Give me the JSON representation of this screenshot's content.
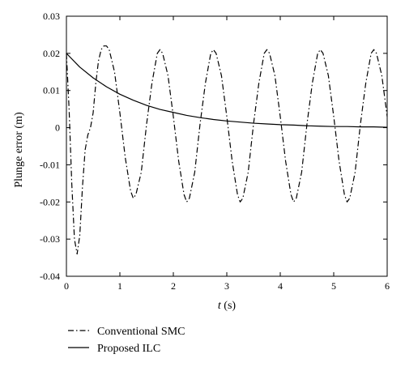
{
  "chart_data": {
    "type": "line",
    "title": "",
    "xlabel": "t (s)",
    "xlabel_italic": "t",
    "xlabel_unit": " (s)",
    "ylabel": "Plunge error (m)",
    "xlim": [
      0,
      6
    ],
    "ylim": [
      -0.04,
      0.03
    ],
    "xticks": [
      0,
      1,
      2,
      3,
      4,
      5,
      6
    ],
    "xtick_labels": [
      "0",
      "1",
      "2",
      "3",
      "4",
      "5",
      "6"
    ],
    "yticks": [
      0.03,
      0.02,
      0.01,
      0,
      -0.01,
      -0.02,
      -0.03,
      -0.04
    ],
    "ytick_labels": [
      "0.03",
      "0.02",
      "0.01",
      "0",
      "-0.01",
      "-0.02",
      "-0.03",
      "-0.04"
    ],
    "grid": false,
    "legend_position": "bottom-left, below plot",
    "series": [
      {
        "name": "Conventional SMC",
        "line_style": "dash-dot",
        "color": "#000000",
        "x": [
          0,
          0.05,
          0.1,
          0.15,
          0.2,
          0.25,
          0.3,
          0.35,
          0.4,
          0.45,
          0.5,
          0.55,
          0.6,
          0.65,
          0.7,
          0.75,
          0.8,
          0.9,
          1.0,
          1.1,
          1.2,
          1.25,
          1.3,
          1.4,
          1.5,
          1.6,
          1.7,
          1.75,
          1.8,
          1.9,
          2.0,
          2.1,
          2.2,
          2.25,
          2.3,
          2.4,
          2.5,
          2.6,
          2.7,
          2.75,
          2.8,
          2.9,
          3.0,
          3.1,
          3.2,
          3.25,
          3.3,
          3.4,
          3.5,
          3.6,
          3.7,
          3.75,
          3.8,
          3.9,
          4.0,
          4.1,
          4.2,
          4.25,
          4.3,
          4.4,
          4.5,
          4.6,
          4.7,
          4.75,
          4.8,
          4.9,
          5.0,
          5.1,
          5.2,
          5.25,
          5.3,
          5.4,
          5.5,
          5.6,
          5.7,
          5.75,
          5.8,
          5.9,
          6.0
        ],
        "y": [
          0.02,
          0.005,
          -0.015,
          -0.03,
          -0.034,
          -0.029,
          -0.016,
          -0.006,
          -0.002,
          0.0,
          0.004,
          0.012,
          0.018,
          0.021,
          0.022,
          0.022,
          0.021,
          0.015,
          0.004,
          -0.008,
          -0.017,
          -0.019,
          -0.018,
          -0.012,
          0.001,
          0.012,
          0.02,
          0.021,
          0.02,
          0.014,
          0.003,
          -0.009,
          -0.018,
          -0.02,
          -0.019,
          -0.012,
          0.001,
          0.012,
          0.02,
          0.021,
          0.02,
          0.014,
          0.003,
          -0.009,
          -0.018,
          -0.02,
          -0.019,
          -0.012,
          0.001,
          0.012,
          0.02,
          0.021,
          0.02,
          0.014,
          0.003,
          -0.009,
          -0.018,
          -0.02,
          -0.019,
          -0.012,
          0.001,
          0.012,
          0.02,
          0.021,
          0.02,
          0.014,
          0.003,
          -0.009,
          -0.018,
          -0.02,
          -0.019,
          -0.012,
          0.001,
          0.012,
          0.02,
          0.021,
          0.02,
          0.014,
          0.003
        ]
      },
      {
        "name": "Proposed ILC",
        "line_style": "solid",
        "color": "#000000",
        "x": [
          0,
          0.25,
          0.5,
          0.75,
          1.0,
          1.25,
          1.5,
          1.75,
          2.0,
          2.25,
          2.5,
          2.75,
          3.0,
          3.25,
          3.5,
          3.75,
          4.0,
          4.25,
          4.5,
          4.75,
          5.0,
          5.25,
          5.5,
          5.75,
          6.0
        ],
        "y": [
          0.02,
          0.0163,
          0.0134,
          0.011,
          0.009,
          0.0074,
          0.006,
          0.0049,
          0.0041,
          0.0033,
          0.0027,
          0.0022,
          0.0018,
          0.0015,
          0.0012,
          0.001,
          0.0008,
          0.0007,
          0.0005,
          0.0004,
          0.0003,
          0.0003,
          0.0002,
          0.0002,
          0.0001
        ]
      }
    ]
  }
}
